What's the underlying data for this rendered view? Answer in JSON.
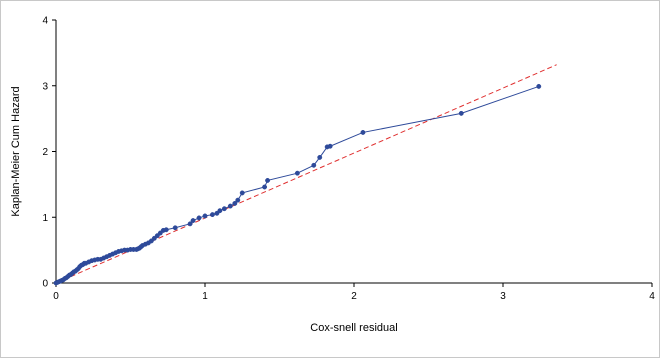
{
  "chart_data": {
    "type": "line",
    "title": "",
    "xlabel": "Cox-snell residual",
    "ylabel": "Kaplan-Meier Cum Hazard",
    "xlim": [
      0,
      4
    ],
    "ylim": [
      0,
      4
    ],
    "xticks": [
      "0",
      "1",
      "2",
      "3",
      "4"
    ],
    "yticks": [
      "0",
      "1",
      "2",
      "3",
      "4"
    ],
    "grid": false,
    "series": [
      {
        "type": "line-with-markers",
        "color": "#2e4a9a",
        "x": [
          0.0,
          0.01,
          0.02,
          0.03,
          0.04,
          0.05,
          0.06,
          0.07,
          0.08,
          0.09,
          0.1,
          0.11,
          0.12,
          0.13,
          0.14,
          0.15,
          0.16,
          0.17,
          0.18,
          0.19,
          0.2,
          0.22,
          0.24,
          0.26,
          0.28,
          0.3,
          0.32,
          0.34,
          0.36,
          0.38,
          0.4,
          0.42,
          0.44,
          0.46,
          0.48,
          0.5,
          0.52,
          0.54,
          0.55,
          0.56,
          0.57,
          0.58,
          0.6,
          0.62,
          0.64,
          0.66,
          0.68,
          0.7,
          0.72,
          0.74,
          0.8,
          0.9,
          0.92,
          0.96,
          1.0,
          1.05,
          1.08,
          1.1,
          1.13,
          1.17,
          1.2,
          1.22,
          1.25,
          1.4,
          1.42,
          1.62,
          1.73,
          1.77,
          1.82,
          1.84,
          2.06,
          2.72,
          3.24
        ],
        "y": [
          0.0,
          0.01,
          0.02,
          0.03,
          0.04,
          0.05,
          0.07,
          0.08,
          0.1,
          0.12,
          0.13,
          0.15,
          0.17,
          0.18,
          0.2,
          0.22,
          0.25,
          0.27,
          0.28,
          0.3,
          0.3,
          0.32,
          0.34,
          0.35,
          0.36,
          0.36,
          0.38,
          0.4,
          0.42,
          0.44,
          0.46,
          0.48,
          0.49,
          0.5,
          0.5,
          0.51,
          0.51,
          0.51,
          0.52,
          0.53,
          0.55,
          0.57,
          0.59,
          0.61,
          0.64,
          0.68,
          0.72,
          0.76,
          0.8,
          0.81,
          0.84,
          0.9,
          0.95,
          0.99,
          1.02,
          1.04,
          1.06,
          1.1,
          1.13,
          1.17,
          1.21,
          1.26,
          1.37,
          1.46,
          1.56,
          1.67,
          1.79,
          1.91,
          2.07,
          2.08,
          2.29,
          2.58,
          2.99
        ]
      },
      {
        "type": "reference-line",
        "style": "dashed",
        "color": "#e03030",
        "x": [
          0,
          3.36
        ],
        "y": [
          0,
          3.32
        ]
      }
    ]
  }
}
